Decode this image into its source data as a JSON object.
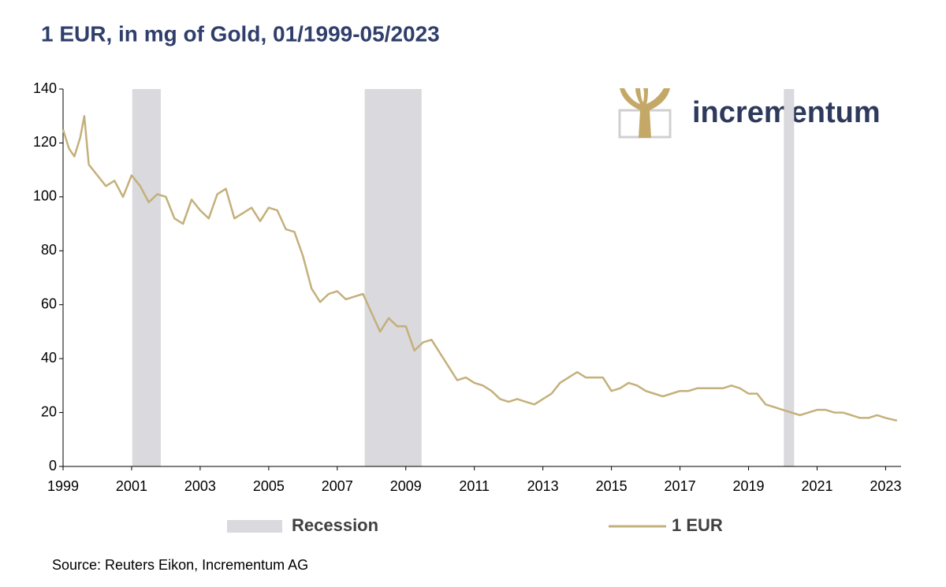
{
  "chart_data": {
    "type": "line",
    "title": "1 EUR, in mg of Gold, 01/1999-05/2023",
    "logo": "incrementum",
    "source": "Source: Reuters Eikon, Incrementum AG",
    "xlim": [
      1999,
      2023.45
    ],
    "xticks": [
      1999,
      2001,
      2003,
      2005,
      2007,
      2009,
      2011,
      2013,
      2015,
      2017,
      2019,
      2021,
      2023
    ],
    "ylim": [
      0,
      140
    ],
    "yticks": [
      0,
      20,
      40,
      60,
      80,
      100,
      120,
      140
    ],
    "recession_name": "Recession",
    "recession_color": "#d9d9de",
    "recessions": [
      [
        2001.02,
        2001.85
      ],
      [
        2007.8,
        2009.46
      ],
      [
        2020.03,
        2020.33
      ]
    ],
    "x": [
      1999.0,
      1999.17,
      1999.33,
      1999.5,
      1999.62,
      1999.75,
      2000.0,
      2000.25,
      2000.5,
      2000.75,
      2001.0,
      2001.25,
      2001.5,
      2001.75,
      2002.0,
      2002.25,
      2002.5,
      2002.75,
      2003.0,
      2003.25,
      2003.5,
      2003.75,
      2004.0,
      2004.25,
      2004.5,
      2004.75,
      2005.0,
      2005.25,
      2005.5,
      2005.75,
      2006.0,
      2006.25,
      2006.5,
      2006.75,
      2007.0,
      2007.25,
      2007.5,
      2007.75,
      2008.0,
      2008.25,
      2008.5,
      2008.75,
      2009.0,
      2009.25,
      2009.5,
      2009.75,
      2010.0,
      2010.25,
      2010.5,
      2010.75,
      2011.0,
      2011.25,
      2011.5,
      2011.75,
      2012.0,
      2012.25,
      2012.5,
      2012.75,
      2013.0,
      2013.25,
      2013.5,
      2013.75,
      2014.0,
      2014.25,
      2014.5,
      2014.75,
      2015.0,
      2015.25,
      2015.5,
      2015.75,
      2016.0,
      2016.25,
      2016.5,
      2016.75,
      2017.0,
      2017.25,
      2017.5,
      2017.75,
      2018.0,
      2018.25,
      2018.5,
      2018.75,
      2019.0,
      2019.25,
      2019.5,
      2019.75,
      2020.0,
      2020.25,
      2020.5,
      2020.75,
      2021.0,
      2021.25,
      2021.5,
      2021.75,
      2022.0,
      2022.25,
      2022.5,
      2022.75,
      2023.0,
      2023.33
    ],
    "series": [
      {
        "name": "1 EUR",
        "color": "#c4b07a",
        "values": [
          125,
          118,
          115,
          122,
          130,
          112,
          108,
          104,
          106,
          100,
          108,
          104,
          98,
          101,
          100,
          92,
          90,
          99,
          95,
          92,
          101,
          103,
          92,
          94,
          96,
          91,
          96,
          95,
          88,
          87,
          78,
          66,
          61,
          64,
          65,
          62,
          63,
          64,
          57,
          50,
          55,
          52,
          52,
          43,
          46,
          47,
          42,
          37,
          32,
          33,
          31,
          30,
          28,
          25,
          24,
          25,
          24,
          23,
          25,
          27,
          31,
          33,
          35,
          33,
          33,
          33,
          28,
          29,
          31,
          30,
          28,
          27,
          26,
          27,
          28,
          28,
          29,
          29,
          29,
          29,
          30,
          29,
          27,
          27,
          23,
          22,
          21,
          20,
          19,
          20,
          21,
          21,
          20,
          20,
          19,
          18,
          18,
          19,
          18,
          17
        ]
      }
    ]
  }
}
